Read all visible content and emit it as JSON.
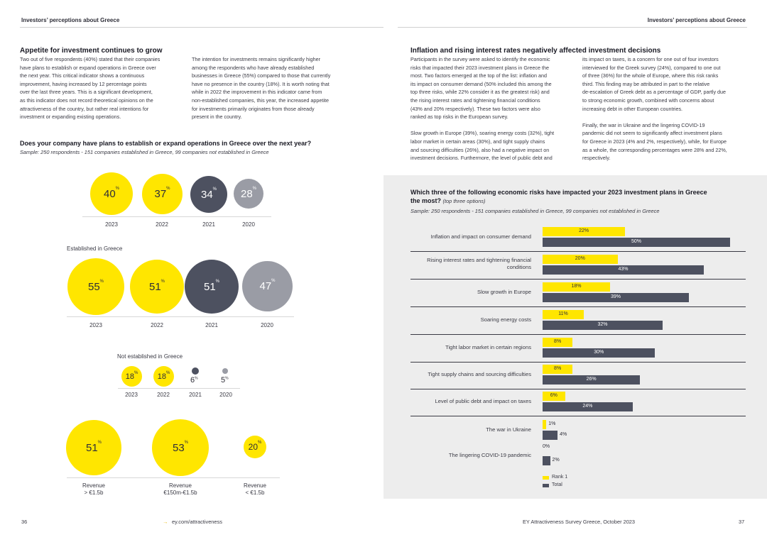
{
  "header": {
    "left_title": "Investors’ perceptions about Greece",
    "right_title": "Investors’ perceptions about Greece"
  },
  "left": {
    "heading": "Appetite for investment continues to grow",
    "para1": [
      "Two out of five respondents (40%) stated that their companies",
      "have plans to establish or expand operations in Greece over",
      "the next year. This critical indicator shows a continuous",
      "improvement, having increased by 12 percentage points",
      "over the last three years. This is a significant development,",
      "as this indicator does not record theoretical opinions on the",
      "attractiveness of the country, but rather real intentions for",
      "investment or expanding existing operations."
    ],
    "para2": [
      "The intention for investments remains significantly higher",
      "among the respondents who have already established",
      "businesses in Greece (55%) compared to those that currently",
      "have no presence in the country (18%). It is worth noting that",
      "while in 2022 the improvement in this indicator came from",
      "non-established companies, this year, the increased appetite",
      "for investments primarily originates from those already",
      "present in the country."
    ],
    "question": "Does your company have plans to establish or expand operations in Greece over the next year?",
    "sample": "Sample: 250 respondents - 151 companies established in Greece, 99 companies not established in Greece",
    "overall": [
      {
        "year": "2023",
        "value": "40"
      },
      {
        "year": "2022",
        "value": "37"
      },
      {
        "year": "2021",
        "value": "34"
      },
      {
        "year": "2020",
        "value": "28"
      }
    ],
    "established_label": "Established in Greece",
    "established": [
      {
        "year": "2023",
        "value": "55"
      },
      {
        "year": "2022",
        "value": "51"
      },
      {
        "year": "2021",
        "value": "51"
      },
      {
        "year": "2020",
        "value": "47"
      }
    ],
    "not_established_label": "Not established in Greece",
    "not_established": [
      {
        "year": "2023",
        "value": "18"
      },
      {
        "year": "2022",
        "value": "18"
      },
      {
        "year": "2021",
        "value": "6"
      },
      {
        "year": "2020",
        "value": "5"
      }
    ],
    "revenue": [
      {
        "value": "51",
        "l1": "Revenue",
        "l2": "> €1.5b"
      },
      {
        "value": "53",
        "l1": "Revenue",
        "l2": "€150m-€1.5b"
      },
      {
        "value": "20",
        "l1": "Revenue",
        "l2": "< €1.5b"
      }
    ],
    "pct": "%"
  },
  "right": {
    "heading": "Inflation and rising interest rates negatively affected investment decisions",
    "col1": [
      "Participants in the survey were asked to identify the economic",
      "risks that impacted their 2023 investment plans in Greece the",
      "most. Two factors emerged at the top of the list: inflation and",
      "its impact on consumer demand (50% included this among the",
      "top three risks, while 22% consider it as the greatest risk) and",
      "the rising interest rates and tightening financial conditions",
      "(43% and 20% respectively). These two factors were also",
      "ranked as top risks in the European survey.",
      "",
      "Slow growth in Europe (39%), soaring energy costs (32%), tight",
      "labor market in certain areas (30%), and tight supply chains",
      "and sourcing difficulties (26%), also had a negative impact on",
      "investment decisions. Furthermore, the level of public debt and"
    ],
    "col2": [
      "its impact on taxes, is a concern for one out of four investors",
      "interviewed for the Greek survey (24%), compared to one out",
      "of three (36%) for the whole of Europe, where this risk ranks",
      "third. This finding may be attributed in part to the relative",
      "de-escalation of Greek debt as a percentage of GDP, partly due",
      "to strong economic growth, combined with concerns about",
      "increasing debt in other European countries.",
      "",
      "Finally, the war in Ukraine and the lingering COVID-19",
      "pandemic did not seem to significantly affect investment plans",
      "for Greece in 2023 (4% and 2%, respectively), while, for Europe",
      "as a whole, the corresponding percentages were 28% and 22%,",
      "respectively."
    ],
    "question_l1": "Which three of the following economic risks have impacted your 2023 investment plans in Greece",
    "question_l2": "the most?",
    "question_note": "(top three options)",
    "sample": "Sample: 250 respondents - 151 companies established in Greece, 99 companies not established in Greece",
    "legend_rank1": "Rank 1",
    "legend_total": "Total"
  },
  "chart_data": {
    "type": "bar",
    "orientation": "horizontal",
    "categories": [
      "Inflation and impact on consumer demand",
      "Rising interest rates and tightening financial conditions",
      "Slow growth in Europe",
      "Soaring energy costs",
      "Tight labor market in certain regions",
      "Tight supply chains and sourcing difficulties",
      "Level of public debt and impact on taxes",
      "The war in Ukraine",
      "The lingering COVID-19 pandemic"
    ],
    "series": [
      {
        "name": "Rank 1",
        "values": [
          22,
          20,
          18,
          11,
          8,
          8,
          6,
          1,
          0
        ],
        "color": "#ffe600"
      },
      {
        "name": "Total",
        "values": [
          50,
          43,
          39,
          32,
          30,
          26,
          24,
          4,
          2
        ],
        "color": "#4d5160"
      }
    ]
  },
  "footer": {
    "page_left": "36",
    "link_arrow": "→",
    "link": "ey.com/attractiveness",
    "survey": "EY Attractiveness Survey Greece, October 2023",
    "page_right": "37"
  },
  "colors": {
    "yellow": "#ffe600",
    "dark": "#4d5160",
    "grey": "#9a9ca5",
    "panel": "#ededed"
  }
}
